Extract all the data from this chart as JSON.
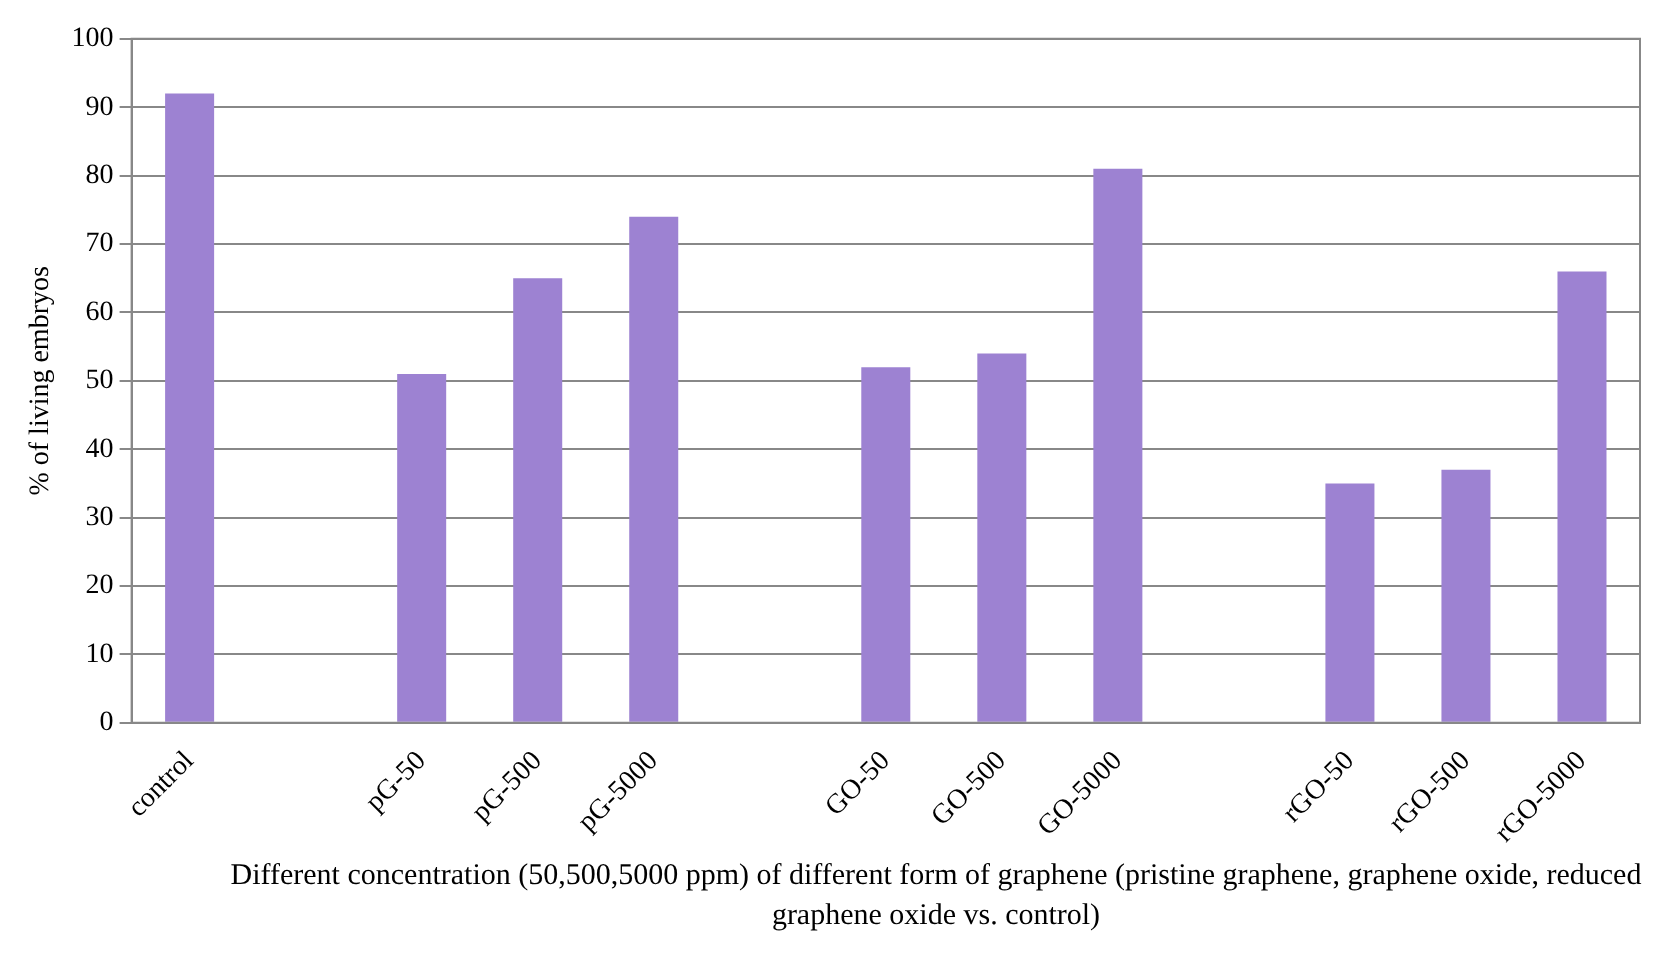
{
  "chart_data": {
    "type": "bar",
    "categories": [
      "control",
      null,
      "pG-50",
      "pG-500",
      "pG-5000",
      null,
      "GO-50",
      "GO-500",
      "GO-5000",
      null,
      "rGO-50",
      "rGO-500",
      "rGO-5000"
    ],
    "values": [
      92,
      null,
      51,
      65,
      74,
      null,
      52,
      54,
      81,
      null,
      35,
      37,
      66
    ],
    "color": "#9d82d2",
    "ylabel": "% of living embryos",
    "xlabel": "Different concentration (50,500,5000 ppm) of different form of graphene (pristine graphene, graphene oxide, reduced graphene oxide vs. control)",
    "ylim": [
      0,
      100
    ],
    "yticks": [
      0,
      10,
      20,
      30,
      40,
      50,
      60,
      70,
      80,
      90,
      100
    ],
    "grid": "y",
    "legend": false
  }
}
